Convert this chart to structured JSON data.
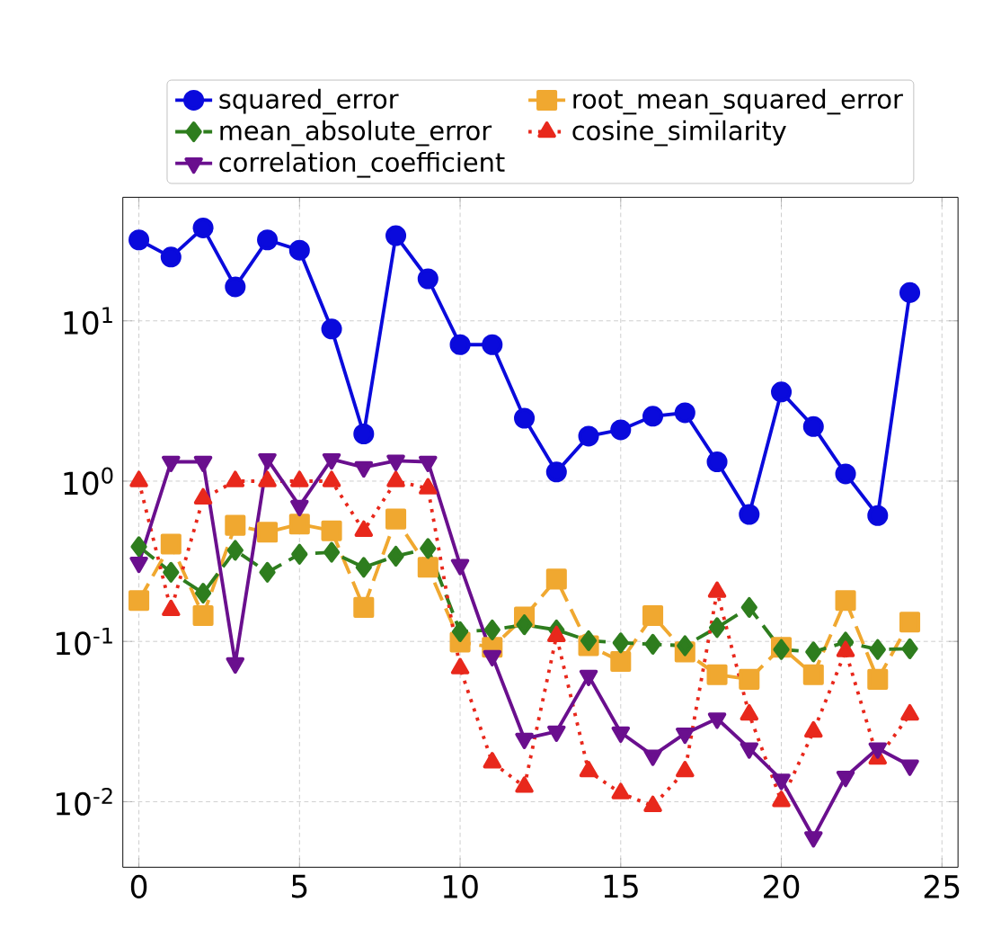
{
  "chart_data": {
    "type": "line",
    "x": [
      0,
      1,
      2,
      3,
      4,
      5,
      6,
      7,
      8,
      9,
      10,
      11,
      12,
      13,
      14,
      15,
      16,
      17,
      18,
      19,
      20,
      21,
      22,
      23,
      24
    ],
    "series": [
      {
        "name": "squared_error",
        "color": "#0a0adc",
        "marker": "circle",
        "line_style": "solid",
        "values": [
          32,
          25,
          38,
          16.3,
          32,
          27.6,
          8.9,
          1.97,
          34,
          18.3,
          7.1,
          7.1,
          2.47,
          1.14,
          1.91,
          2.09,
          2.54,
          2.67,
          1.32,
          0.62,
          3.6,
          2.19,
          1.11,
          0.61,
          15
        ]
      },
      {
        "name": "root_mean_squared_error",
        "color": "#f0a830",
        "marker": "square",
        "line_style": "dashed",
        "values": [
          0.18,
          0.405,
          0.145,
          0.53,
          0.48,
          0.54,
          0.49,
          0.163,
          0.58,
          0.29,
          0.099,
          0.092,
          0.142,
          0.245,
          0.094,
          0.075,
          0.145,
          0.086,
          0.062,
          0.058,
          0.092,
          0.062,
          0.18,
          0.058,
          0.132
        ]
      },
      {
        "name": "mean_absolute_error",
        "color": "#2e7d1e",
        "marker": "diamond",
        "line_style": "dashed",
        "values": [
          0.39,
          0.27,
          0.2,
          0.37,
          0.27,
          0.35,
          0.36,
          0.29,
          0.34,
          0.38,
          0.115,
          0.118,
          0.127,
          0.118,
          0.101,
          0.098,
          0.096,
          0.094,
          0.122,
          0.163,
          0.089,
          0.086,
          0.099,
          0.089,
          0.09
        ]
      },
      {
        "name": "cosine_similarity",
        "color": "#e8281c",
        "marker": "triangle",
        "line_style": "dotted",
        "values": [
          1.0,
          0.157,
          0.78,
          1.0,
          1.0,
          1.0,
          1.0,
          0.49,
          1.0,
          0.9,
          0.068,
          0.0176,
          0.0124,
          0.108,
          0.0155,
          0.0113,
          0.0094,
          0.0155,
          0.204,
          0.035,
          0.0101,
          0.0274,
          0.087,
          0.0186,
          0.035
        ]
      },
      {
        "name": "correlation_coefficient",
        "color": "#6a0f8e",
        "marker": "triangle_down",
        "line_style": "solid",
        "values": [
          0.31,
          1.32,
          1.32,
          0.073,
          1.37,
          0.7,
          1.37,
          1.22,
          1.34,
          1.32,
          0.3,
          0.081,
          0.0247,
          0.0274,
          0.061,
          0.027,
          0.0194,
          0.0266,
          0.033,
          0.0215,
          0.0137,
          0.006,
          0.0143,
          0.0215,
          0.0168
        ]
      }
    ],
    "log": "y",
    "xlim": [
      -0.5,
      25.5
    ],
    "ylim": [
      0.0039,
      59
    ],
    "xticks": [
      0,
      5,
      10,
      15,
      20,
      25
    ],
    "yticks": [
      {
        "value": 0.01,
        "label": "10$^{-2}$"
      },
      {
        "value": 0.1,
        "label": "10$^{-1}$"
      },
      {
        "value": 1,
        "label": "10$^{0}$"
      },
      {
        "value": 10,
        "label": "10$^{1}$"
      }
    ],
    "grid": true,
    "legend": "top"
  }
}
